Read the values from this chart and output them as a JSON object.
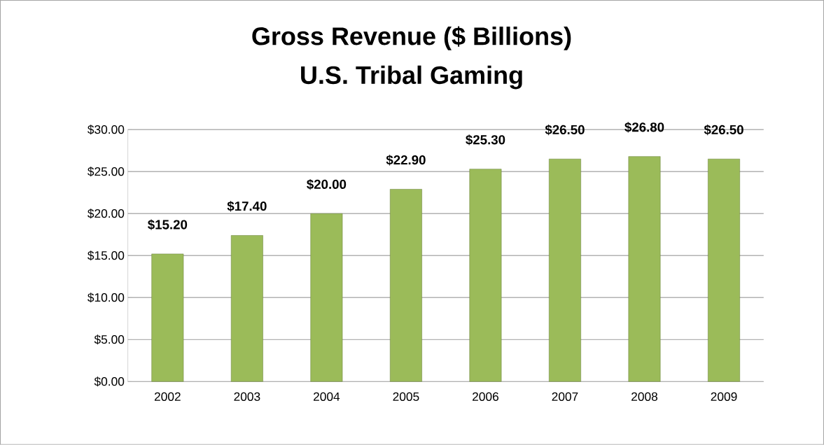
{
  "chart_data": {
    "type": "bar",
    "title": "Gross Revenue ($ Billions)",
    "subtitle": "U.S. Tribal Gaming",
    "categories": [
      "2002",
      "2003",
      "2004",
      "2005",
      "2006",
      "2007",
      "2008",
      "2009"
    ],
    "values": [
      15.2,
      17.4,
      20.0,
      22.9,
      25.3,
      26.5,
      26.8,
      26.5
    ],
    "value_labels": [
      "$15.20",
      "$17.40",
      "$20.00",
      "$22.90",
      "$25.30",
      "$26.50",
      "$26.80",
      "$26.50"
    ],
    "color": "#9bbb59",
    "ylim": [
      0,
      30
    ],
    "yticks": [
      {
        "value": 0,
        "label": "$0.00"
      },
      {
        "value": 5,
        "label": "$5.00"
      },
      {
        "value": 10,
        "label": "$10.00"
      },
      {
        "value": 15,
        "label": "$15.00"
      },
      {
        "value": 20,
        "label": "$20.00"
      },
      {
        "value": 25,
        "label": "$25.00"
      },
      {
        "value": 30,
        "label": "$30.00"
      }
    ],
    "grid": "y"
  }
}
